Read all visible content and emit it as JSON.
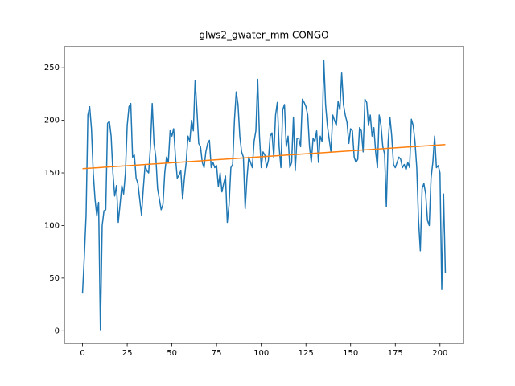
{
  "chart_data": {
    "type": "line",
    "title": "glws2_gwater_mm CONGO",
    "xlim": [
      -10.15,
      213.15
    ],
    "ylim": [
      -12,
      270
    ],
    "xticks": [
      0,
      25,
      50,
      75,
      100,
      125,
      150,
      175,
      200
    ],
    "yticks": [
      0,
      50,
      100,
      150,
      200,
      250
    ],
    "series": [
      {
        "color": "#1f77b4",
        "x": [
          0,
          1,
          2,
          3,
          4,
          5,
          6,
          7,
          8,
          9,
          10,
          11,
          12,
          13,
          14,
          15,
          16,
          17,
          18,
          19,
          20,
          21,
          22,
          23,
          24,
          25,
          26,
          27,
          28,
          29,
          30,
          31,
          32,
          33,
          34,
          35,
          36,
          37,
          38,
          39,
          40,
          41,
          42,
          43,
          44,
          45,
          46,
          47,
          48,
          49,
          50,
          51,
          52,
          53,
          54,
          55,
          56,
          57,
          58,
          59,
          60,
          61,
          62,
          63,
          64,
          65,
          66,
          67,
          68,
          69,
          70,
          71,
          72,
          73,
          74,
          75,
          76,
          77,
          78,
          79,
          80,
          81,
          82,
          83,
          84,
          85,
          86,
          87,
          88,
          89,
          90,
          91,
          92,
          93,
          94,
          95,
          96,
          97,
          98,
          99,
          100,
          101,
          102,
          103,
          104,
          105,
          106,
          107,
          108,
          109,
          110,
          111,
          112,
          113,
          114,
          115,
          116,
          117,
          118,
          119,
          120,
          121,
          122,
          123,
          124,
          125,
          126,
          127,
          128,
          129,
          130,
          131,
          132,
          133,
          134,
          135,
          136,
          137,
          138,
          139,
          140,
          141,
          142,
          143,
          144,
          145,
          146,
          147,
          148,
          149,
          150,
          151,
          152,
          153,
          154,
          155,
          156,
          157,
          158,
          159,
          160,
          161,
          162,
          163,
          164,
          165,
          166,
          167,
          168,
          169,
          170,
          171,
          172,
          173,
          174,
          175,
          176,
          177,
          178,
          179,
          180,
          181,
          182,
          183,
          184,
          185,
          186,
          187,
          188,
          189,
          190,
          191,
          192,
          193,
          194,
          195,
          196,
          197,
          198,
          199,
          200,
          201,
          202,
          203
        ],
        "values": [
          36,
          70,
          110,
          205,
          213,
          192,
          150,
          125,
          109,
          122,
          1,
          100,
          114,
          115,
          197,
          199,
          185,
          150,
          128,
          138,
          103,
          120,
          138,
          130,
          150,
          195,
          213,
          216,
          165,
          167,
          145,
          140,
          125,
          110,
          135,
          157,
          152,
          150,
          175,
          216,
          178,
          165,
          135,
          125,
          115,
          120,
          150,
          165,
          160,
          190,
          185,
          192,
          165,
          145,
          148,
          152,
          125,
          145,
          160,
          185,
          180,
          200,
          190,
          238,
          210,
          178,
          175,
          160,
          155,
          170,
          178,
          181,
          155,
          160,
          155,
          157,
          137,
          150,
          132,
          140,
          147,
          103,
          120,
          155,
          158,
          200,
          227,
          215,
          185,
          170,
          165,
          116,
          145,
          165,
          160,
          155,
          180,
          190,
          239,
          185,
          155,
          170,
          167,
          155,
          162,
          185,
          188,
          165,
          205,
          217,
          175,
          155,
          210,
          215,
          175,
          185,
          155,
          160,
          203,
          152,
          183,
          183,
          175,
          220,
          217,
          213,
          205,
          175,
          160,
          183,
          180,
          190,
          160,
          185,
          180,
          257,
          215,
          195,
          182,
          170,
          205,
          200,
          195,
          218,
          210,
          245,
          215,
          205,
          198,
          178,
          192,
          190,
          165,
          160,
          163,
          193,
          190,
          170,
          220,
          217,
          195,
          205,
          185,
          193,
          170,
          155,
          205,
          195,
          175,
          168,
          118,
          180,
          203,
          185,
          158,
          155,
          160,
          165,
          163,
          155,
          158,
          153,
          160,
          155,
          201,
          195,
          180,
          155,
          105,
          76,
          135,
          140,
          130,
          105,
          100,
          145,
          160,
          185,
          155,
          157,
          150,
          39,
          130,
          55
        ]
      },
      {
        "color": "#ff7f0e",
        "x": [
          0,
          203
        ],
        "values": [
          154,
          177
        ]
      }
    ]
  }
}
